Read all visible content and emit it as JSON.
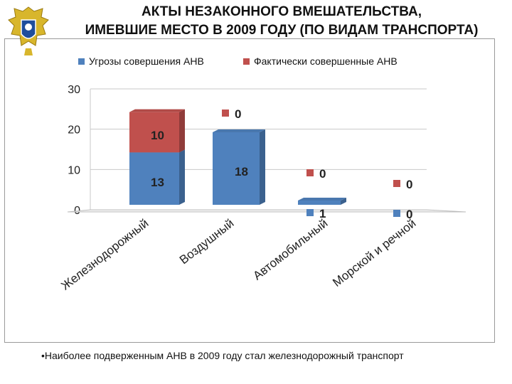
{
  "header": {
    "title_line1": "АКТЫ НЕЗАКОННОГО ВМЕШАТЕЛЬСТВА,",
    "title_line2": "ИМЕВШИЕ МЕСТО В 2009 ГОДУ (ПО ВИДАМ ТРАНСПОРТА)"
  },
  "emblem": {
    "icon": "double-headed-eagle-emblem-icon"
  },
  "note": {
    "text": "•Наиболее подверженным АНВ в 2009 году стал железнодорожный транспорт"
  },
  "chart_data": {
    "type": "bar",
    "stacked": true,
    "three_d": true,
    "categories": [
      "Железнодорожный",
      "Воздушный",
      "Автомобильный",
      "Морской и речной"
    ],
    "series": [
      {
        "name": "Угрозы совершения АНВ",
        "values": [
          13,
          18,
          1,
          0
        ],
        "color": "#4f81bd"
      },
      {
        "name": "Фактически совершенные АНВ",
        "values": [
          10,
          0,
          0,
          0
        ],
        "color": "#c0504d"
      }
    ],
    "ylim": [
      0,
      30
    ],
    "yticks": [
      0,
      10,
      20,
      30
    ],
    "grid": true,
    "legend_position": "top",
    "labels": {
      "s0": [
        "13",
        "18",
        "1",
        "0"
      ],
      "s1": [
        "10",
        "0",
        "0",
        "0"
      ]
    }
  }
}
